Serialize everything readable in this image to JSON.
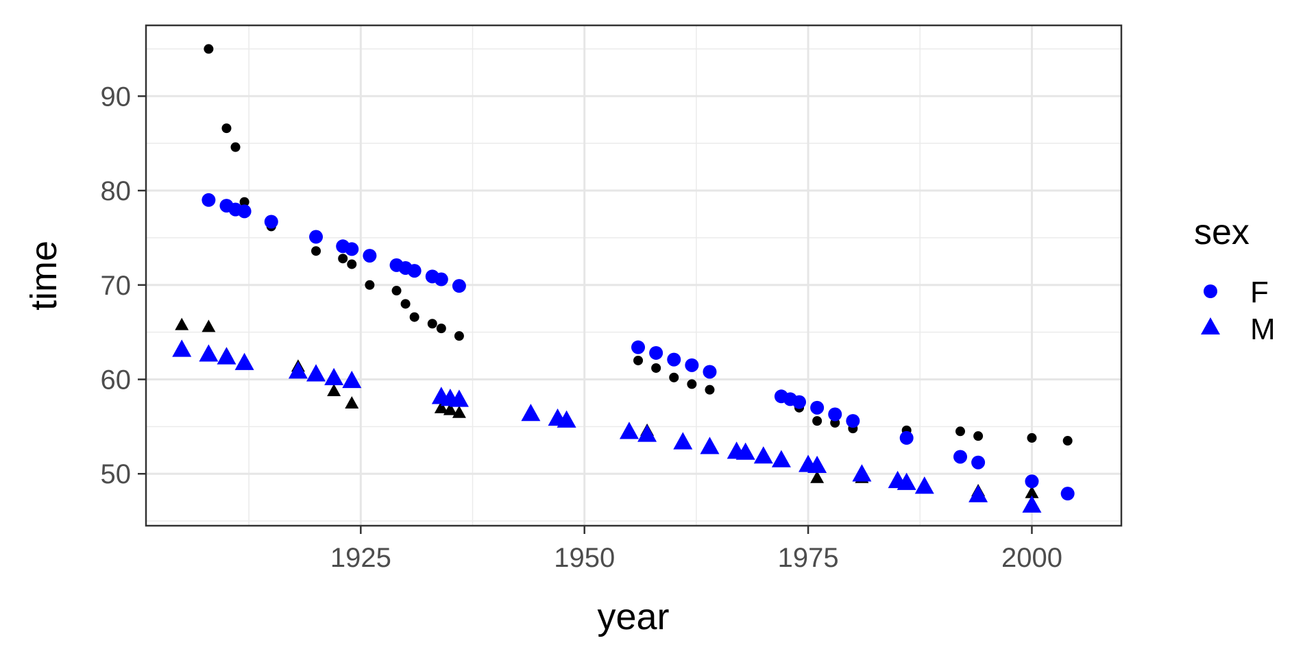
{
  "chart_data": {
    "type": "scatter",
    "xlabel": "year",
    "ylabel": "time",
    "xlim": [
      1901,
      2010
    ],
    "ylim": [
      44.5,
      97.5
    ],
    "xticks": [
      1925,
      1950,
      1975,
      2000
    ],
    "yticks": [
      50,
      60,
      70,
      80,
      90
    ],
    "grid": true,
    "legend": {
      "title": "sex",
      "position": "right",
      "entries": [
        {
          "label": "F",
          "shape": "circle",
          "color": "#0000ff"
        },
        {
          "label": "M",
          "shape": "triangle",
          "color": "#0000ff"
        }
      ]
    },
    "series": [
      {
        "name": "F",
        "color": "#0000ff",
        "shape": "circle",
        "points": [
          [
            1908,
            79.0
          ],
          [
            1910,
            78.4
          ],
          [
            1911,
            78.0
          ],
          [
            1912,
            77.8
          ],
          [
            1915,
            76.7
          ],
          [
            1920,
            75.1
          ],
          [
            1923,
            74.1
          ],
          [
            1924,
            73.8
          ],
          [
            1926,
            73.1
          ],
          [
            1929,
            72.1
          ],
          [
            1930,
            71.8
          ],
          [
            1931,
            71.5
          ],
          [
            1933,
            70.9
          ],
          [
            1934,
            70.6
          ],
          [
            1936,
            69.9
          ],
          [
            1956,
            63.4
          ],
          [
            1958,
            62.8
          ],
          [
            1960,
            62.1
          ],
          [
            1962,
            61.5
          ],
          [
            1964,
            60.8
          ],
          [
            1972,
            58.2
          ],
          [
            1973,
            57.9
          ],
          [
            1974,
            57.6
          ],
          [
            1976,
            57.0
          ],
          [
            1978,
            56.3
          ],
          [
            1980,
            55.6
          ],
          [
            1986,
            53.8
          ],
          [
            1992,
            51.8
          ],
          [
            1994,
            51.2
          ],
          [
            2000,
            49.2
          ],
          [
            2004,
            47.9
          ]
        ]
      },
      {
        "name": "M",
        "color": "#0000ff",
        "shape": "triangle",
        "points": [
          [
            1905,
            63.2
          ],
          [
            1908,
            62.7
          ],
          [
            1910,
            62.4
          ],
          [
            1912,
            61.8
          ],
          [
            1918,
            60.9
          ],
          [
            1920,
            60.6
          ],
          [
            1922,
            60.2
          ],
          [
            1924,
            59.9
          ],
          [
            1934,
            58.2
          ],
          [
            1935,
            58.0
          ],
          [
            1936,
            57.9
          ],
          [
            1944,
            56.4
          ],
          [
            1947,
            55.9
          ],
          [
            1948,
            55.7
          ],
          [
            1955,
            54.5
          ],
          [
            1957,
            54.2
          ],
          [
            1961,
            53.4
          ],
          [
            1964,
            52.9
          ],
          [
            1967,
            52.4
          ],
          [
            1968,
            52.3
          ],
          [
            1970,
            51.9
          ],
          [
            1972,
            51.5
          ],
          [
            1975,
            51.0
          ],
          [
            1976,
            50.9
          ],
          [
            1981,
            50.0
          ],
          [
            1985,
            49.3
          ],
          [
            1986,
            49.1
          ],
          [
            1988,
            48.7
          ],
          [
            1994,
            47.8
          ],
          [
            2000,
            46.7
          ]
        ]
      },
      {
        "name": "",
        "color": "#000000",
        "shape": "circle",
        "points": [
          [
            1908,
            95.0
          ],
          [
            1910,
            86.6
          ],
          [
            1911,
            84.6
          ],
          [
            1912,
            78.8
          ],
          [
            1915,
            76.2
          ],
          [
            1920,
            73.6
          ],
          [
            1923,
            72.8
          ],
          [
            1924,
            72.2
          ],
          [
            1926,
            70.0
          ],
          [
            1929,
            69.4
          ],
          [
            1930,
            68.0
          ],
          [
            1931,
            66.6
          ],
          [
            1933,
            65.9
          ],
          [
            1934,
            65.4
          ],
          [
            1936,
            64.6
          ],
          [
            1956,
            62.0
          ],
          [
            1958,
            61.2
          ],
          [
            1960,
            60.2
          ],
          [
            1962,
            59.5
          ],
          [
            1964,
            58.9
          ],
          [
            1974,
            57.0
          ],
          [
            1976,
            55.6
          ],
          [
            1978,
            55.4
          ],
          [
            1980,
            54.8
          ],
          [
            1986,
            54.6
          ],
          [
            1992,
            54.5
          ],
          [
            1994,
            54.0
          ],
          [
            2000,
            53.8
          ],
          [
            2004,
            53.5
          ]
        ]
      },
      {
        "name": "",
        "color": "#000000",
        "shape": "triangle",
        "points": [
          [
            1905,
            65.8
          ],
          [
            1908,
            65.6
          ],
          [
            1910,
            62.7
          ],
          [
            1912,
            62.0
          ],
          [
            1918,
            61.4
          ],
          [
            1922,
            58.8
          ],
          [
            1924,
            57.5
          ],
          [
            1934,
            57.0
          ],
          [
            1935,
            56.8
          ],
          [
            1936,
            56.5
          ],
          [
            1944,
            56.2
          ],
          [
            1947,
            56.1
          ],
          [
            1948,
            55.8
          ],
          [
            1955,
            54.6
          ],
          [
            1957,
            54.6
          ],
          [
            1961,
            53.6
          ],
          [
            1964,
            53.1
          ],
          [
            1976,
            49.6
          ],
          [
            1981,
            49.6
          ],
          [
            1994,
            48.2
          ],
          [
            2000,
            48.0
          ]
        ]
      }
    ]
  }
}
